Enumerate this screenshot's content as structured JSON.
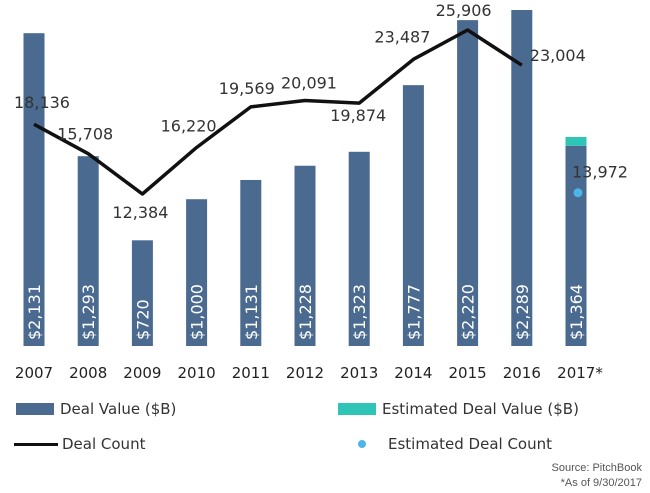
{
  "chart_data": {
    "type": "bar",
    "categories": [
      "2007",
      "2008",
      "2009",
      "2010",
      "2011",
      "2012",
      "2013",
      "2014",
      "2015",
      "2016",
      "2017*"
    ],
    "series": [
      {
        "name": "Deal Value ($B)",
        "type": "bar",
        "values": [
          2131,
          1293,
          720,
          1000,
          1131,
          1228,
          1323,
          1777,
          2220,
          2289,
          1364
        ],
        "labels": [
          "$2,131",
          "$1,293",
          "$720",
          "$1,000",
          "$1,131",
          "$1,228",
          "$1,323",
          "$1,777",
          "$2,220",
          "$2,289",
          "$1,364"
        ],
        "color": "#4a6a8f"
      },
      {
        "name": "Estimated Deal Value ($B)",
        "type": "bar-stacked",
        "values": [
          null,
          null,
          null,
          null,
          null,
          null,
          null,
          null,
          null,
          null,
          60
        ],
        "color": "#2ec4b6"
      },
      {
        "name": "Deal Count",
        "type": "line",
        "values": [
          18136,
          15708,
          12384,
          16220,
          19569,
          20091,
          19874,
          23487,
          25906,
          23004,
          null
        ],
        "labels": [
          "18,136",
          "15,708",
          "12,384",
          "16,220",
          "19,569",
          "20,091",
          "19,874",
          "23,487",
          "25,906",
          "23,004",
          ""
        ],
        "color": "#111111"
      },
      {
        "name": "Estimated Deal Count",
        "type": "point",
        "values": [
          null,
          null,
          null,
          null,
          null,
          null,
          null,
          null,
          null,
          null,
          13972
        ],
        "labels": [
          "",
          "",
          "",
          "",
          "",
          "",
          "",
          "",
          "",
          "",
          "13,972"
        ],
        "color": "#4db6e8"
      }
    ],
    "title": "",
    "xlabel": "",
    "ylabel": "",
    "bar_ylim": [
      0,
      2289
    ],
    "line_ylim": [
      0,
      30000
    ],
    "grid": false,
    "legend": "bottom"
  },
  "legend": {
    "deal_value": "Deal Value ($B)",
    "est_deal_value": "Estimated Deal Value ($B)",
    "deal_count": "Deal Count",
    "est_deal_count": "Estimated Deal Count"
  },
  "source": {
    "line1": "Source: PitchBook",
    "line2": "*As of 9/30/2017"
  }
}
